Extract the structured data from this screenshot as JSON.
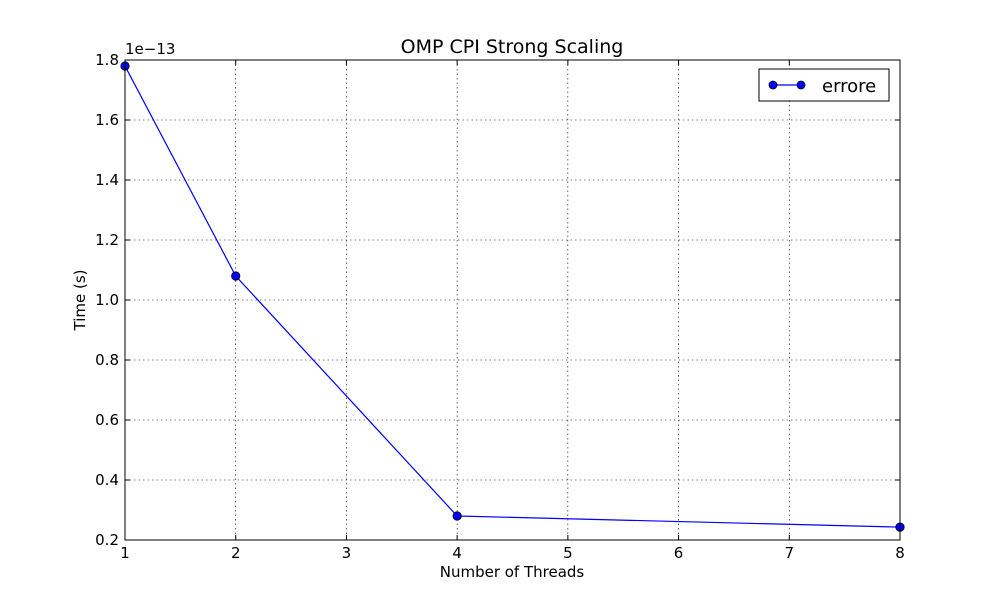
{
  "chart_data": {
    "type": "line",
    "title": "OMP CPI Strong Scaling",
    "xlabel": "Number of Threads",
    "ylabel": "Time (s)",
    "y_offset_label": "1e−13",
    "xlim": [
      1,
      8
    ],
    "ylim": [
      0.2,
      1.8
    ],
    "x_ticks": [
      1,
      2,
      3,
      4,
      5,
      6,
      7,
      8
    ],
    "y_ticks": [
      0.2,
      0.4,
      0.6,
      0.8,
      1.0,
      1.2,
      1.4,
      1.6,
      1.8
    ],
    "grid": true,
    "legend_position": "top-right",
    "series": [
      {
        "name": "errore",
        "color": "#0000ff",
        "marker": "circle",
        "x": [
          1,
          2,
          4,
          8
        ],
        "y": [
          1.78,
          1.08,
          0.28,
          0.243
        ]
      }
    ]
  }
}
